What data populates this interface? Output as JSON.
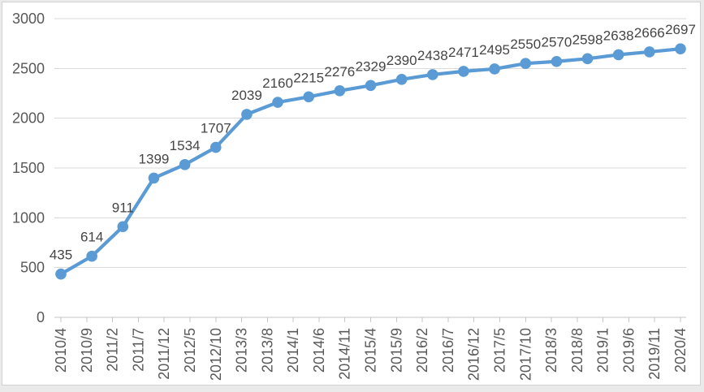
{
  "chart_data": {
    "type": "line",
    "title": "",
    "legend": "none",
    "grid": true,
    "series": [
      {
        "name": "",
        "values": [
          435,
          614,
          911,
          1399,
          1534,
          1707,
          2039,
          2160,
          2215,
          2276,
          2329,
          2390,
          2438,
          2471,
          2495,
          2550,
          2570,
          2598,
          2638,
          2666,
          2697
        ]
      }
    ],
    "data_labels_visible": true,
    "x_tick_labels": [
      "2010/4",
      "2010/9",
      "2011/2",
      "2011/7",
      "2011/12",
      "2012/5",
      "2012/10",
      "2013/3",
      "2013/8",
      "2014/1",
      "2014/6",
      "2014/11",
      "2015/4",
      "2015/9",
      "2016/2",
      "2016/7",
      "2016/12",
      "2017/5",
      "2017/10",
      "2018/3",
      "2018/8",
      "2019/1",
      "2019/6",
      "2019/11",
      "2020/4"
    ],
    "x_axis": {
      "first_label": "2010/4",
      "last_label": "2020/4",
      "label_interval_months": 5,
      "point_interval_months": 6,
      "label_rotation_degrees": -90
    },
    "y_axis": {
      "min": 0,
      "max": 3000,
      "ticks": [
        0,
        500,
        1000,
        1500,
        2000,
        2500,
        3000
      ]
    },
    "colors": {
      "series": "#5b9bd5",
      "marker": "#5b9bd5",
      "gridline": "#d9d9d9",
      "axis_line": "#c6c6c6",
      "axis_text": "#595959",
      "data_label_text": "#454545",
      "chart_background": "#ffffff",
      "page_background": "#eaeaea",
      "frame_border": "#d2d2d2"
    }
  }
}
